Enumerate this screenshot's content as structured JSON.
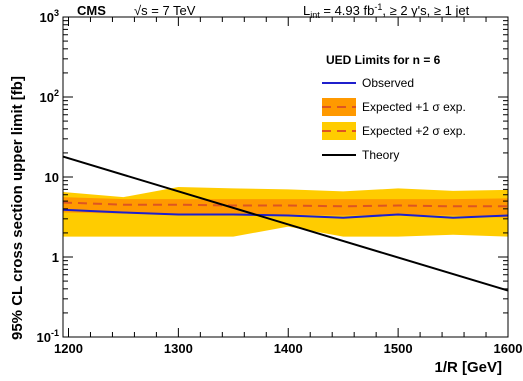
{
  "chart_data": {
    "type": "line",
    "header": {
      "experiment": "CMS",
      "energy_label": "√s = 7 TeV",
      "luminosity_label": "L",
      "luminosity_sub": "int",
      "luminosity_value": " = 4.93 fb",
      "luminosity_exp": "-1",
      "selection": ",  ≥ 2 γ's,  ≥ 1 jet"
    },
    "xlabel": "1/R [GeV]",
    "ylabel": "95% CL cross section upper limit [fb]",
    "xlim": [
      1195,
      1600
    ],
    "ylim": [
      0.1,
      1000
    ],
    "yscale": "log",
    "x_ticks": [
      1200,
      1300,
      1400,
      1500,
      1600
    ],
    "y_ticks": [
      {
        "value": 0.1,
        "base": "10",
        "exp": "-1"
      },
      {
        "value": 1,
        "base": "1",
        "exp": ""
      },
      {
        "value": 10,
        "base": "10",
        "exp": ""
      },
      {
        "value": 100,
        "base": "10",
        "exp": "2"
      },
      {
        "value": 1000,
        "base": "10",
        "exp": "3"
      }
    ],
    "legend": {
      "title": "UED Limits for n = 6",
      "position": "top-right",
      "entries": [
        {
          "label": "Observed",
          "type": "line"
        },
        {
          "label": "Expected +1 σ exp.",
          "type": "band1"
        },
        {
          "label": "Expected +2 σ exp.",
          "type": "band2"
        },
        {
          "label": "Theory",
          "type": "line"
        }
      ]
    },
    "x": [
      1195,
      1250,
      1300,
      1350,
      1400,
      1450,
      1500,
      1550,
      1600
    ],
    "series": [
      {
        "name": "Observed",
        "color": "#1f1fcc",
        "values": [
          3.9,
          3.6,
          3.4,
          3.4,
          3.3,
          3.1,
          3.4,
          3.1,
          3.3
        ]
      },
      {
        "name": "Expected",
        "color": "#dd5522",
        "values": [
          4.8,
          4.5,
          4.5,
          4.4,
          4.4,
          4.3,
          4.4,
          4.3,
          4.3
        ]
      },
      {
        "name": "Theory",
        "color": "#000000",
        "x": [
          1195,
          1600
        ],
        "values": [
          18,
          0.38
        ]
      }
    ],
    "band_1sigma": {
      "color": "#ff9900",
      "low": [
        3.6,
        3.5,
        3.5,
        3.4,
        3.4,
        3.3,
        3.4,
        3.3,
        3.1
      ],
      "high": [
        5.6,
        5.3,
        5.3,
        5.3,
        5.3,
        5.3,
        5.3,
        5.3,
        5.4
      ]
    },
    "band_2sigma": {
      "color": "#ffcc00",
      "low": [
        1.8,
        1.8,
        1.8,
        1.8,
        2.4,
        1.8,
        1.8,
        1.9,
        1.8
      ],
      "high": [
        6.5,
        5.6,
        7.5,
        7.2,
        7.0,
        6.6,
        7.2,
        6.7,
        6.9
      ]
    }
  }
}
